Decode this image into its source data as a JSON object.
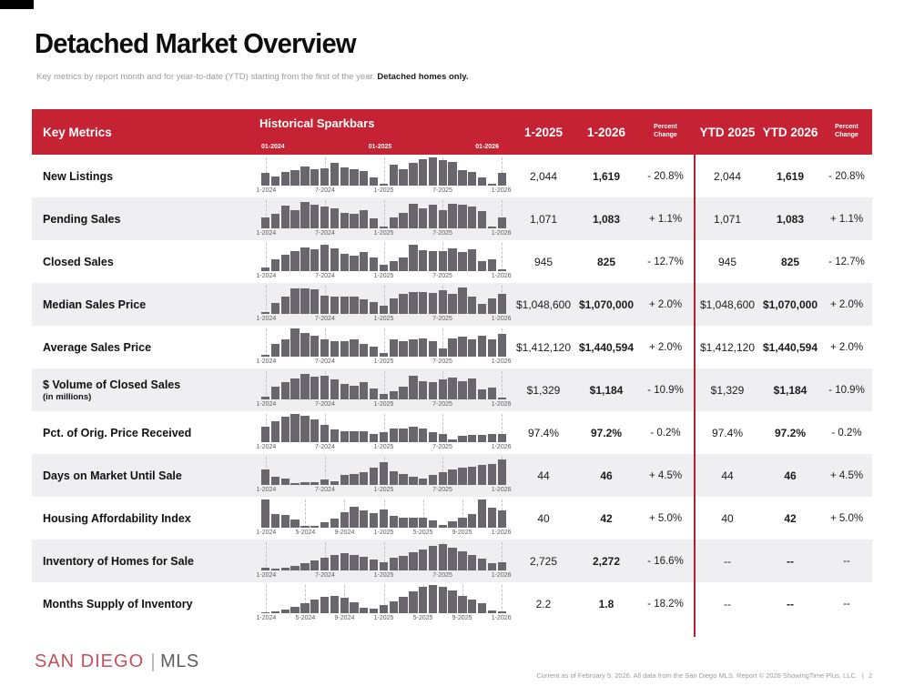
{
  "page": {
    "title": "Detached Market Overview",
    "subtitle": "Key metrics by report month and for year-to-date (YTD) starting from the first of the year.",
    "subtitle_emphasis": "Detached homes only."
  },
  "table": {
    "key_metrics_header": "Key Metrics",
    "sparkbars_header": "Historical Sparkbars",
    "sparkbar_year_ticks": [
      "01-2024",
      "01-2025",
      "01-2026"
    ],
    "value_columns": [
      "1-2025",
      "1-2026",
      "Percent Change",
      "YTD 2025",
      "YTD 2026",
      "Percent Change"
    ],
    "rows": [
      {
        "metric": "New Listings",
        "metric_note": "",
        "sparkbar": {
          "ticks": [
            "1-2024",
            "7-2024",
            "1-2025",
            "7-2025",
            "1-2026"
          ],
          "values": [
            0.45,
            0.33,
            0.5,
            0.55,
            0.68,
            0.58,
            0.62,
            0.8,
            0.65,
            0.58,
            0.52,
            0.3,
            0.06,
            0.75,
            0.58,
            0.8,
            0.95,
            1.0,
            0.9,
            0.83,
            0.55,
            0.5,
            0.28,
            0.06,
            0.45
          ]
        },
        "values": {
          "month_prev": "2,044",
          "month_curr": "1,619",
          "month_change": "- 20.8%",
          "ytd_prev": "2,044",
          "ytd_curr": "1,619",
          "ytd_change": "- 20.8%"
        }
      },
      {
        "metric": "Pending Sales",
        "metric_note": "",
        "sparkbar": {
          "ticks": [
            "1-2024",
            "7-2024",
            "1-2025",
            "7-2025",
            "1-2026"
          ],
          "values": [
            0.4,
            0.52,
            0.82,
            0.66,
            0.95,
            0.84,
            0.76,
            0.7,
            0.55,
            0.52,
            0.64,
            0.34,
            0.05,
            0.38,
            0.55,
            0.88,
            0.7,
            0.85,
            0.64,
            0.88,
            0.84,
            0.76,
            0.6,
            0.08,
            0.38
          ]
        },
        "values": {
          "month_prev": "1,071",
          "month_curr": "1,083",
          "month_change": "+ 1.1%",
          "ytd_prev": "1,071",
          "ytd_curr": "1,083",
          "ytd_change": "+ 1.1%"
        }
      },
      {
        "metric": "Closed Sales",
        "metric_note": "",
        "sparkbar": {
          "ticks": [
            "1-2024",
            "7-2024",
            "1-2025",
            "7-2025",
            "1-2026"
          ],
          "values": [
            0.12,
            0.42,
            0.58,
            0.72,
            0.85,
            0.78,
            0.95,
            0.82,
            0.62,
            0.55,
            0.68,
            0.48,
            0.22,
            0.35,
            0.5,
            0.92,
            0.75,
            0.7,
            0.72,
            0.8,
            0.68,
            0.78,
            0.35,
            0.42,
            0.05
          ]
        },
        "values": {
          "month_prev": "945",
          "month_curr": "825",
          "month_change": "- 12.7%",
          "ytd_prev": "945",
          "ytd_curr": "825",
          "ytd_change": "- 12.7%"
        }
      },
      {
        "metric": "Median Sales Price",
        "metric_note": "",
        "sparkbar": {
          "ticks": [
            "1-2024",
            "7-2024",
            "1-2025",
            "7-2025",
            "1-2026"
          ],
          "values": [
            0.05,
            0.4,
            0.6,
            0.9,
            0.9,
            0.88,
            0.65,
            0.62,
            0.62,
            0.6,
            0.52,
            0.42,
            0.3,
            0.55,
            0.72,
            0.78,
            0.78,
            0.75,
            0.85,
            0.72,
            0.92,
            0.62,
            0.35,
            0.55,
            0.72
          ]
        },
        "values": {
          "month_prev": "$1,048,600",
          "month_curr": "$1,070,000",
          "month_change": "+ 2.0%",
          "ytd_prev": "$1,048,600",
          "ytd_curr": "$1,070,000",
          "ytd_change": "+ 2.0%"
        }
      },
      {
        "metric": "Average Sales Price",
        "metric_note": "",
        "sparkbar": {
          "ticks": [
            "1-2024",
            "7-2024",
            "1-2025",
            "7-2025",
            "1-2026"
          ],
          "values": [
            0.08,
            0.45,
            0.62,
            1.0,
            0.85,
            0.75,
            0.62,
            0.55,
            0.55,
            0.6,
            0.45,
            0.35,
            0.12,
            0.6,
            0.55,
            0.62,
            0.65,
            0.55,
            0.3,
            0.65,
            0.7,
            0.62,
            0.75,
            0.6,
            0.8
          ]
        },
        "values": {
          "month_prev": "$1,412,120",
          "month_curr": "$1,440,594",
          "month_change": "+ 2.0%",
          "ytd_prev": "$1,412,120",
          "ytd_curr": "$1,440,594",
          "ytd_change": "+ 2.0%"
        }
      },
      {
        "metric": "$ Volume of Closed Sales",
        "metric_note": "(in millions)",
        "sparkbar": {
          "ticks": [
            "1-2024",
            "7-2024",
            "1-2025",
            "7-2025",
            "1-2026"
          ],
          "values": [
            0.1,
            0.45,
            0.6,
            0.75,
            0.9,
            0.8,
            0.85,
            0.72,
            0.55,
            0.5,
            0.62,
            0.4,
            0.2,
            0.3,
            0.45,
            0.85,
            0.65,
            0.6,
            0.7,
            0.78,
            0.65,
            0.75,
            0.35,
            0.42,
            0.08
          ]
        },
        "values": {
          "month_prev": "$1,329",
          "month_curr": "$1,184",
          "month_change": "- 10.9%",
          "ytd_prev": "$1,329",
          "ytd_curr": "$1,184",
          "ytd_change": "- 10.9%"
        }
      },
      {
        "metric": "Pct. of Orig. Price Received",
        "metric_note": "",
        "sparkbar": {
          "ticks": [
            "1-2024",
            "7-2024",
            "1-2025",
            "7-2025",
            "1-2026"
          ],
          "values": [
            0.55,
            0.75,
            0.9,
            1.0,
            0.95,
            0.8,
            0.6,
            0.45,
            0.4,
            0.4,
            0.38,
            0.3,
            0.35,
            0.5,
            0.5,
            0.55,
            0.5,
            0.35,
            0.3,
            0.1,
            0.22,
            0.25,
            0.25,
            0.28,
            0.28
          ]
        },
        "values": {
          "month_prev": "97.4%",
          "month_curr": "97.2%",
          "month_change": "- 0.2%",
          "ytd_prev": "97.4%",
          "ytd_curr": "97.2%",
          "ytd_change": "- 0.2%"
        }
      },
      {
        "metric": "Days on Market Until Sale",
        "metric_note": "",
        "sparkbar": {
          "ticks": [
            "1-2024",
            "7-2024",
            "1-2025",
            "7-2025",
            "1-2026"
          ],
          "values": [
            0.55,
            0.3,
            0.22,
            0.08,
            0.1,
            0.1,
            0.18,
            0.12,
            0.35,
            0.4,
            0.45,
            0.6,
            0.8,
            0.5,
            0.4,
            0.3,
            0.22,
            0.35,
            0.45,
            0.55,
            0.6,
            0.65,
            0.7,
            0.75,
            0.9
          ]
        },
        "values": {
          "month_prev": "44",
          "month_curr": "46",
          "month_change": "+ 4.5%",
          "ytd_prev": "44",
          "ytd_curr": "46",
          "ytd_change": "+ 4.5%"
        }
      },
      {
        "metric": "Housing Affordability Index",
        "metric_note": "",
        "sparkbar": {
          "ticks": [
            "1-2024",
            "5-2024",
            "9-2024",
            "1-2025",
            "5-2025",
            "9-2025",
            "1-2026"
          ],
          "values": [
            1.0,
            0.5,
            0.45,
            0.3,
            0.06,
            0.06,
            0.2,
            0.32,
            0.55,
            0.75,
            0.62,
            0.52,
            0.65,
            0.42,
            0.36,
            0.36,
            0.36,
            0.25,
            0.1,
            0.22,
            0.35,
            0.5,
            1.0,
            0.72,
            0.62
          ]
        },
        "values": {
          "month_prev": "40",
          "month_curr": "42",
          "month_change": "+ 5.0%",
          "ytd_prev": "40",
          "ytd_curr": "42",
          "ytd_change": "+ 5.0%"
        }
      },
      {
        "metric": "Inventory of Homes for Sale",
        "metric_note": "",
        "sparkbar": {
          "ticks": [
            "1-2024",
            "7-2024",
            "1-2025",
            "7-2025",
            "1-2026"
          ],
          "values": [
            0.1,
            0.08,
            0.1,
            0.15,
            0.25,
            0.35,
            0.45,
            0.55,
            0.6,
            0.55,
            0.5,
            0.38,
            0.3,
            0.45,
            0.52,
            0.65,
            0.75,
            0.88,
            0.95,
            0.82,
            0.68,
            0.55,
            0.42,
            0.25,
            0.3
          ]
        },
        "values": {
          "month_prev": "2,725",
          "month_curr": "2,272",
          "month_change": "- 16.6%",
          "ytd_prev": "--",
          "ytd_curr": "--",
          "ytd_change": "--"
        }
      },
      {
        "metric": "Months Supply of Inventory",
        "metric_note": "",
        "sparkbar": {
          "ticks": [
            "1-2024",
            "5-2024",
            "9-2024",
            "1-2025",
            "5-2025",
            "9-2025",
            "1-2026"
          ],
          "values": [
            0.04,
            0.06,
            0.12,
            0.22,
            0.35,
            0.48,
            0.58,
            0.62,
            0.55,
            0.4,
            0.2,
            0.15,
            0.3,
            0.42,
            0.58,
            0.78,
            0.92,
            1.0,
            0.95,
            0.8,
            0.62,
            0.5,
            0.35,
            0.1,
            0.05
          ]
        },
        "values": {
          "month_prev": "2.2",
          "month_curr": "1.8",
          "month_change": "- 18.2%",
          "ytd_prev": "--",
          "ytd_curr": "--",
          "ytd_change": "--"
        }
      }
    ]
  },
  "footer": {
    "logo_part1": "SAN DIEGO",
    "logo_part2": "MLS",
    "note": "Current as of February 5, 2026. All data from the San Diego MLS. Report © 2026 ShowingTime Plus, LLC.",
    "page_separator": "|",
    "page_number": "2"
  },
  "colors": {
    "header_red": "#C52233",
    "divider_red": "#B22031",
    "bar_gray": "#69666E",
    "row_alt_gray": "#EFEFF1",
    "logo_red": "#C05060",
    "logo_gray": "#5F5D63",
    "corner_black": "#000000"
  }
}
